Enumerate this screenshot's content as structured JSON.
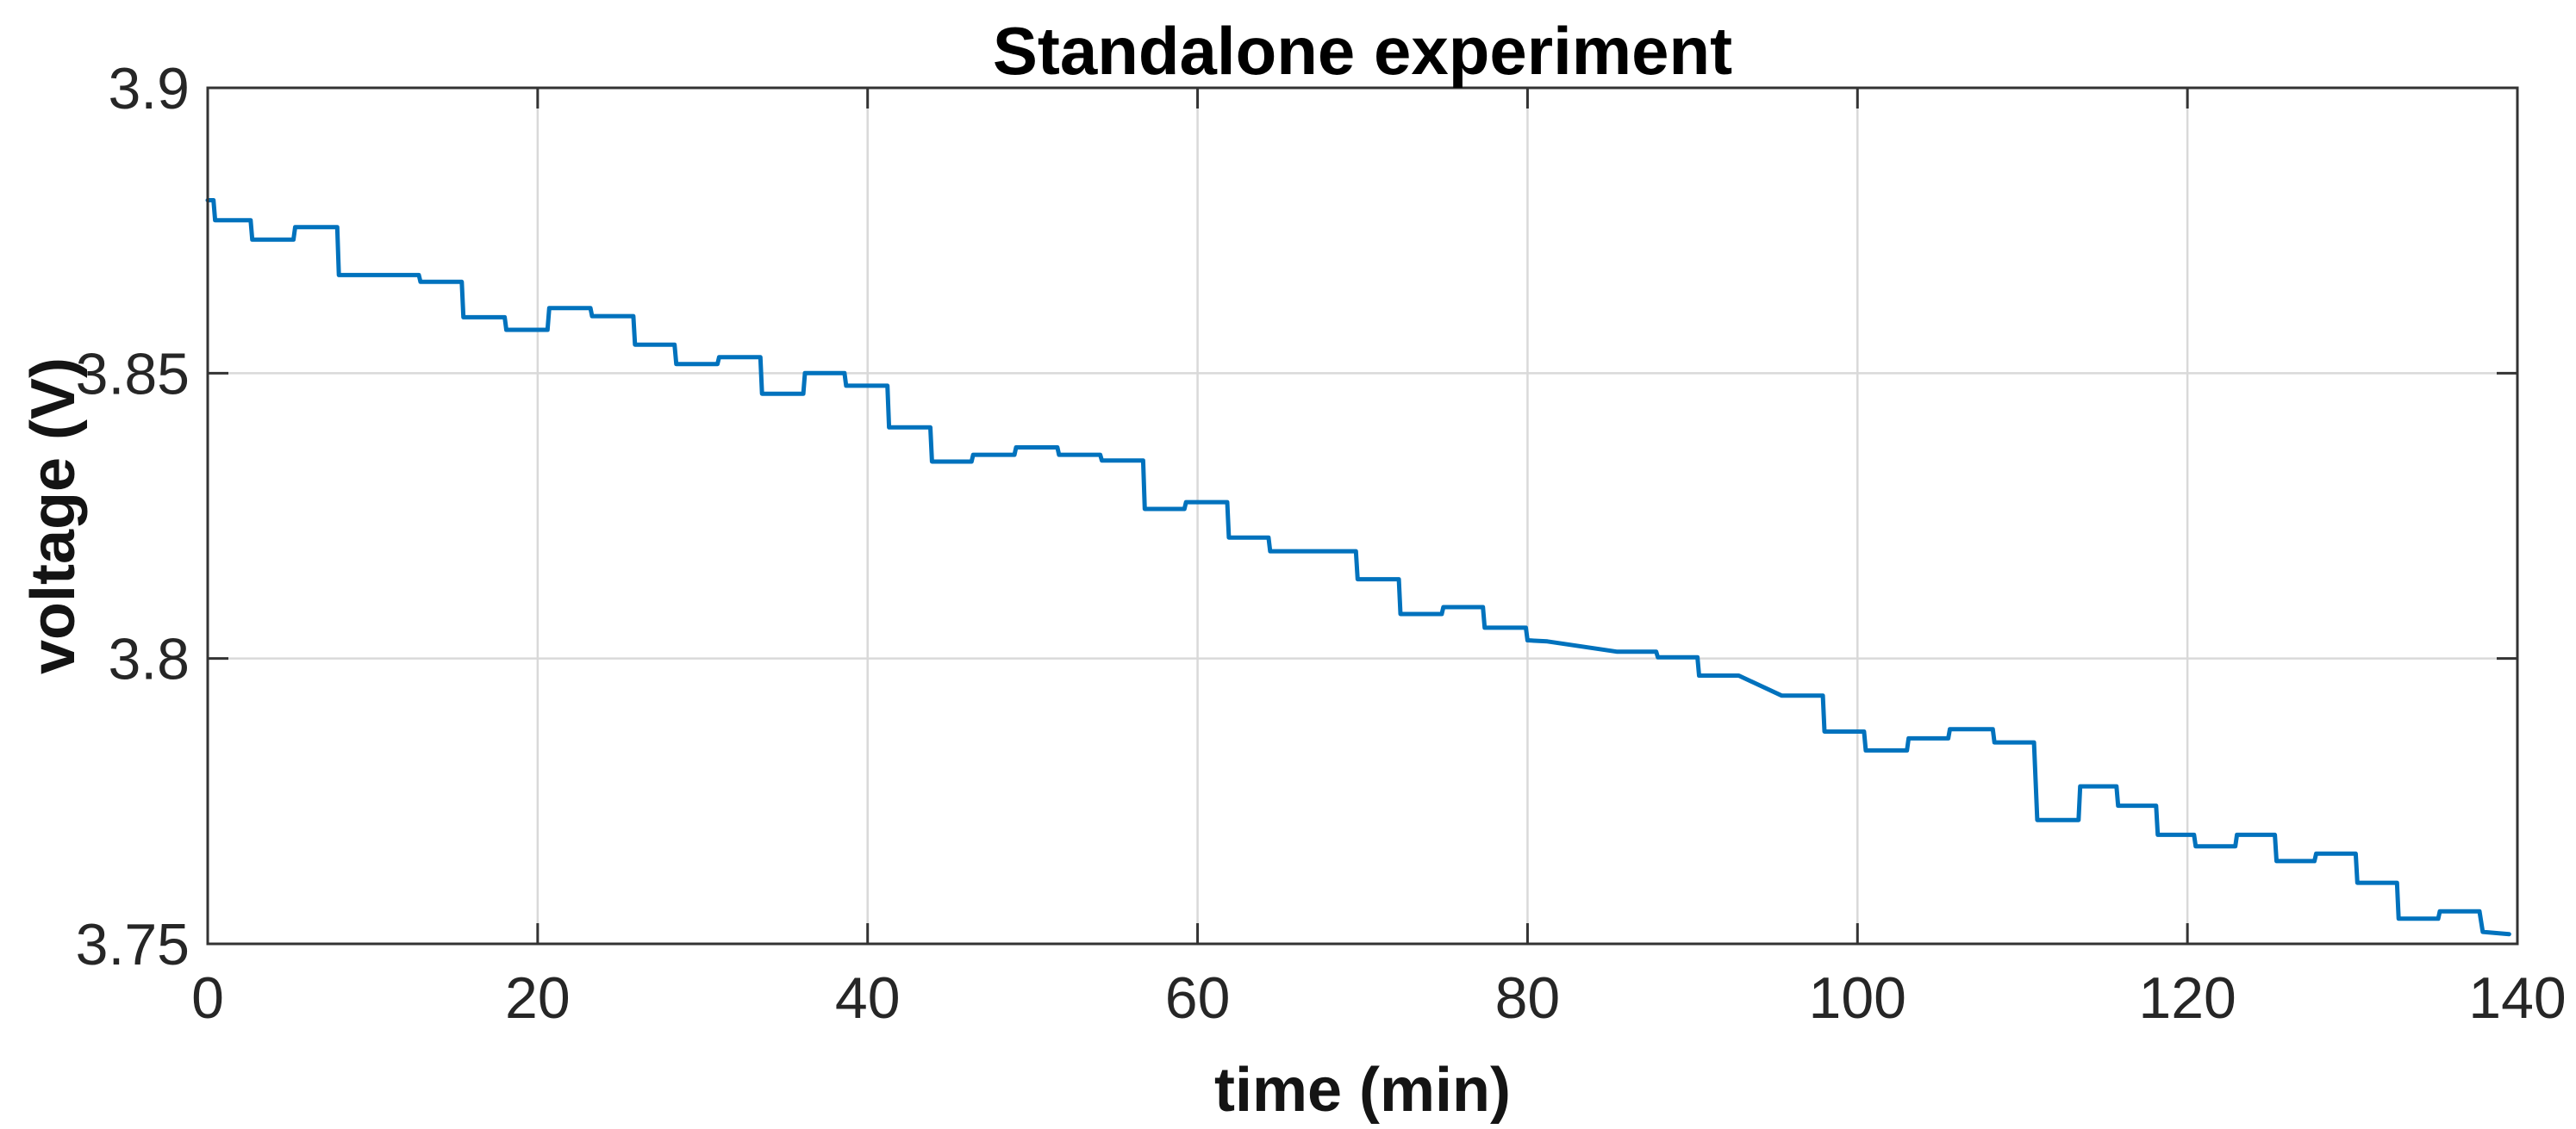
{
  "chart_data": {
    "type": "line",
    "title": "Standalone experiment",
    "xlabel": "time (min)",
    "ylabel": "voltage (V)",
    "xlim": [
      0,
      140
    ],
    "ylim": [
      3.75,
      3.9
    ],
    "x_ticks": [
      0,
      20,
      40,
      60,
      80,
      100,
      120,
      140
    ],
    "x_tick_labels": [
      "0",
      "20",
      "40",
      "60",
      "80",
      "100",
      "120",
      "140"
    ],
    "y_ticks": [
      3.75,
      3.8,
      3.85,
      3.9
    ],
    "y_tick_labels": [
      "3.75",
      "3.8",
      "3.85",
      "3.9"
    ],
    "grid": true,
    "legend_position": "none",
    "series": [
      {
        "name": "voltage",
        "color": "#0072BD",
        "line_width": 5,
        "points": [
          [
            0.0,
            3.8803
          ],
          [
            0.35,
            3.8803
          ],
          [
            0.45,
            3.8768
          ],
          [
            2.6,
            3.8768
          ],
          [
            2.7,
            3.8734
          ],
          [
            5.2,
            3.8734
          ],
          [
            5.3,
            3.8756
          ],
          [
            7.85,
            3.8756
          ],
          [
            7.95,
            3.8672
          ],
          [
            12.8,
            3.8672
          ],
          [
            12.9,
            3.866
          ],
          [
            15.4,
            3.866
          ],
          [
            15.5,
            3.8598
          ],
          [
            18.0,
            3.8598
          ],
          [
            18.1,
            3.8576
          ],
          [
            20.6,
            3.8576
          ],
          [
            20.7,
            3.8614
          ],
          [
            23.2,
            3.8614
          ],
          [
            23.3,
            3.86
          ],
          [
            25.8,
            3.86
          ],
          [
            25.9,
            3.855
          ],
          [
            28.3,
            3.855
          ],
          [
            28.4,
            3.8516
          ],
          [
            30.9,
            3.8516
          ],
          [
            31.0,
            3.8528
          ],
          [
            33.5,
            3.8528
          ],
          [
            33.6,
            3.8464
          ],
          [
            36.1,
            3.8464
          ],
          [
            36.2,
            3.85
          ],
          [
            38.6,
            3.85
          ],
          [
            38.7,
            3.8478
          ],
          [
            41.2,
            3.8478
          ],
          [
            41.3,
            3.8405
          ],
          [
            43.8,
            3.8405
          ],
          [
            43.9,
            3.8345
          ],
          [
            46.3,
            3.8345
          ],
          [
            46.4,
            3.8357
          ],
          [
            48.9,
            3.8357
          ],
          [
            49.0,
            3.837
          ],
          [
            51.5,
            3.837
          ],
          [
            51.6,
            3.8357
          ],
          [
            54.1,
            3.8357
          ],
          [
            54.2,
            3.8347
          ],
          [
            56.7,
            3.8347
          ],
          [
            56.8,
            3.8262
          ],
          [
            59.2,
            3.8262
          ],
          [
            59.3,
            3.8274
          ],
          [
            61.8,
            3.8274
          ],
          [
            61.9,
            3.8212
          ],
          [
            64.3,
            3.8212
          ],
          [
            64.4,
            3.8188
          ],
          [
            69.6,
            3.8188
          ],
          [
            69.7,
            3.8139
          ],
          [
            72.2,
            3.8139
          ],
          [
            72.3,
            3.8078
          ],
          [
            74.8,
            3.8078
          ],
          [
            74.9,
            3.809
          ],
          [
            77.3,
            3.809
          ],
          [
            77.4,
            3.8054
          ],
          [
            79.9,
            3.8054
          ],
          [
            80.0,
            3.8032
          ],
          [
            81.2,
            3.803
          ],
          [
            85.4,
            3.8012
          ],
          [
            87.8,
            3.8012
          ],
          [
            87.9,
            3.8002
          ],
          [
            90.3,
            3.8002
          ],
          [
            90.4,
            3.797
          ],
          [
            92.8,
            3.797
          ],
          [
            95.4,
            3.7935
          ],
          [
            97.9,
            3.7935
          ],
          [
            98.0,
            3.7872
          ],
          [
            100.4,
            3.7872
          ],
          [
            100.5,
            3.7839
          ],
          [
            103.0,
            3.7839
          ],
          [
            103.1,
            3.786
          ],
          [
            105.5,
            3.786
          ],
          [
            105.6,
            3.7876
          ],
          [
            108.2,
            3.7876
          ],
          [
            108.3,
            3.7853
          ],
          [
            110.7,
            3.7853
          ],
          [
            110.9,
            3.7717
          ],
          [
            113.4,
            3.7717
          ],
          [
            113.5,
            3.7776
          ],
          [
            115.7,
            3.7776
          ],
          [
            115.8,
            3.7742
          ],
          [
            118.1,
            3.7742
          ],
          [
            118.2,
            3.7691
          ],
          [
            120.4,
            3.7691
          ],
          [
            120.5,
            3.7671
          ],
          [
            122.9,
            3.7671
          ],
          [
            123.0,
            3.7691
          ],
          [
            125.3,
            3.7691
          ],
          [
            125.4,
            3.7645
          ],
          [
            127.7,
            3.7645
          ],
          [
            127.8,
            3.7658
          ],
          [
            130.2,
            3.7658
          ],
          [
            130.3,
            3.7607
          ],
          [
            132.7,
            3.7607
          ],
          [
            132.8,
            3.7544
          ],
          [
            135.2,
            3.7544
          ],
          [
            135.3,
            3.7557
          ],
          [
            137.7,
            3.7557
          ],
          [
            137.9,
            3.7521
          ],
          [
            139.5,
            3.7517
          ]
        ]
      }
    ]
  },
  "styles": {
    "background": "#ffffff",
    "line_color": "#0072BD",
    "grid_color": "#d9d9d9",
    "axis_color": "#333333",
    "tick_label_color": "#262626",
    "title_color": "#000000"
  }
}
